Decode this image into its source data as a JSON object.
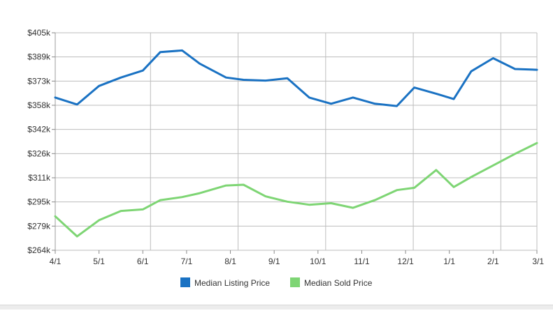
{
  "chart_data": {
    "type": "line",
    "title": "",
    "xlabel": "",
    "ylabel": "",
    "x_ticks": [
      "4/1",
      "5/1",
      "6/1",
      "7/1",
      "8/1",
      "9/1",
      "10/1",
      "11/1",
      "12/1",
      "1/1",
      "2/1",
      "3/1"
    ],
    "y_ticks": [
      "$405k",
      "$389k",
      "$373k",
      "$358k",
      "$342k",
      "$326k",
      "$311k",
      "$295k",
      "$279k",
      "$264k"
    ],
    "ylim": [
      264,
      405
    ],
    "x_domain": [
      0,
      11
    ],
    "series": [
      {
        "name": "Median Listing Price",
        "color": "#1a72c3",
        "x": [
          0,
          0.5,
          1,
          1.5,
          2,
          2.4,
          2.9,
          3.3,
          3.9,
          4.3,
          4.8,
          5.3,
          5.8,
          6.3,
          6.8,
          7.3,
          7.8,
          8.2,
          8.7,
          9.1,
          9.5,
          10,
          10.5,
          11
        ],
        "y": [
          363,
          358.5,
          370.5,
          376,
          380.5,
          392.5,
          393.5,
          385,
          376,
          374.5,
          374,
          375.5,
          363,
          359,
          363,
          359,
          357.5,
          369.5,
          365.5,
          362,
          380,
          388.5,
          381.5,
          381
        ]
      },
      {
        "name": "Median Sold Price",
        "color": "#7ed574",
        "x": [
          0,
          0.5,
          1,
          1.5,
          2,
          2.4,
          2.9,
          3.3,
          3.9,
          4.3,
          4.8,
          5.3,
          5.8,
          6.3,
          6.8,
          7.3,
          7.8,
          8.2,
          8.7,
          9.1,
          9.5,
          10,
          10.5,
          11
        ],
        "y": [
          286,
          273,
          283.5,
          289.5,
          290.5,
          296.5,
          298.5,
          301,
          306,
          306.5,
          299,
          295.5,
          293.5,
          294.5,
          291.5,
          296.5,
          303,
          304.5,
          316,
          305,
          311.5,
          319,
          326.5,
          333.5
        ]
      }
    ],
    "grid": true,
    "legend_position": "bottom-center"
  }
}
